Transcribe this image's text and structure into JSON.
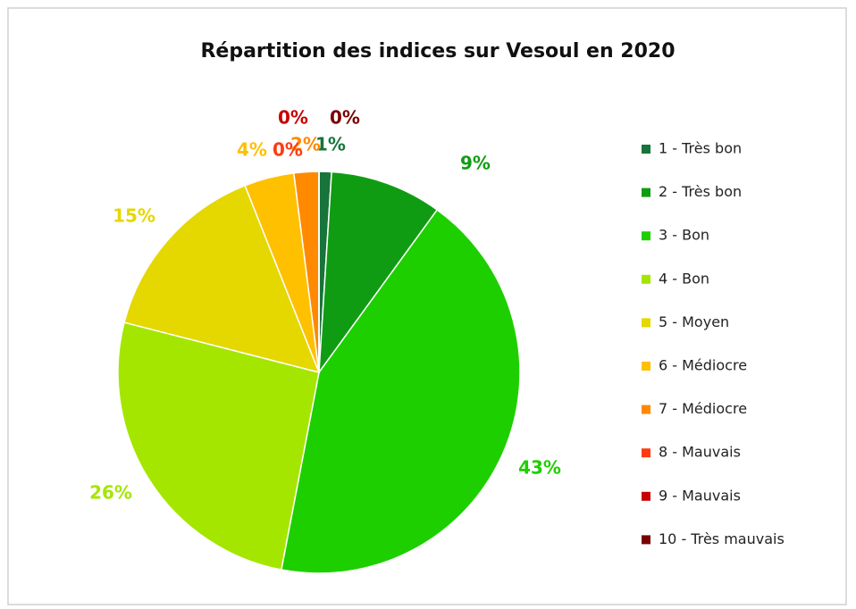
{
  "chart_data": {
    "type": "pie",
    "title": "Répartition des indices sur Vesoul en 2020",
    "categories": [
      "1 - Très bon",
      "2 - Très bon",
      "3 - Bon",
      "4 - Bon",
      "5 - Moyen",
      "6 - Médiocre",
      "7 - Médiocre",
      "8 - Mauvais",
      "9 - Mauvais",
      "10 - Très mauvais"
    ],
    "values": [
      1,
      9,
      43,
      26,
      15,
      4,
      2,
      0,
      0,
      0
    ],
    "value_labels": [
      "1%",
      "9%",
      "43%",
      "26%",
      "15%",
      "4%",
      "2%",
      "0%",
      "0%",
      "0%"
    ],
    "colors": [
      "#17743a",
      "#109c12",
      "#1ecf00",
      "#a4e600",
      "#e5d700",
      "#ffc000",
      "#ff8a00",
      "#ff3a12",
      "#c80000",
      "#7a0000"
    ],
    "legend": "right"
  }
}
